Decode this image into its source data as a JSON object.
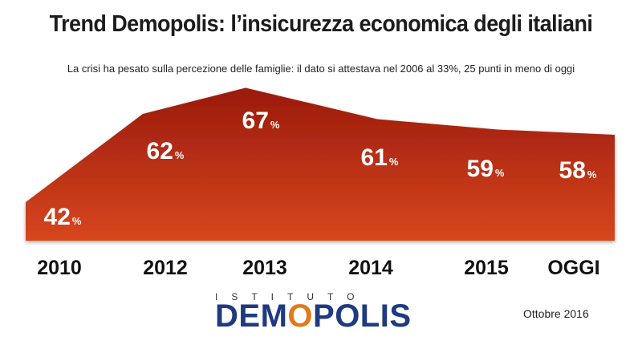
{
  "title": "Trend Demopolis: l’insicurezza economica degli italiani",
  "subtitle": "La crisi ha pesato sulla percezione delle famiglie: il dato si attestava nel 2006 al 33%, 25 punti in meno di oggi",
  "chart_data": {
    "type": "area",
    "categories": [
      "2010",
      "2012",
      "2013",
      "2014",
      "2015",
      "OGGI"
    ],
    "values": [
      42,
      62,
      67,
      61,
      59,
      58
    ],
    "value_suffix": "%",
    "colors": {
      "area_top": "#9a1a0c",
      "area_bottom": "#d8461f"
    },
    "grid": false
  },
  "footer": {
    "logo_small": "ISTITUTO",
    "logo_main_pre": "DEM",
    "logo_main_o": "O",
    "logo_main_post": "POLIS",
    "date": "Ottobre 2016"
  }
}
